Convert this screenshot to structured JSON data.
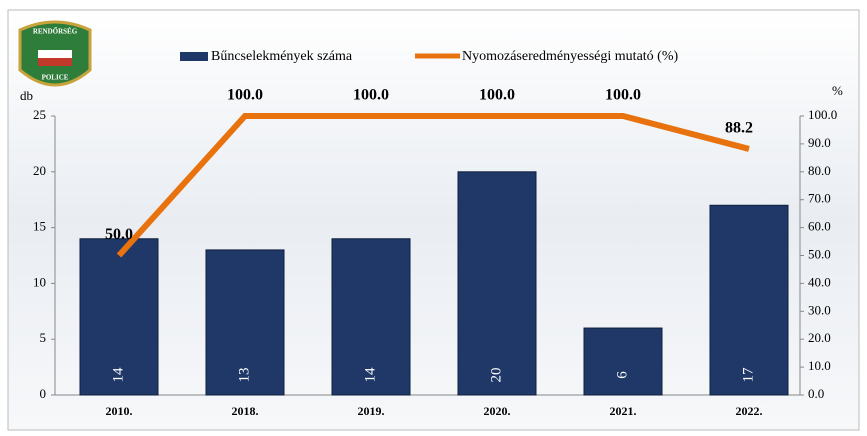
{
  "logo": {
    "top": "RENDŐRSÉG",
    "bottom": "POLICE"
  },
  "chart_data": {
    "type": "bar-line",
    "y_label": "db",
    "y2_label": "%",
    "categories": [
      "2010.",
      "2018.",
      "2019.",
      "2020.",
      "2021.",
      "2022."
    ],
    "series": [
      {
        "name": "Bűncselekmények száma",
        "type": "bar",
        "color": "#1f3868",
        "values": [
          14,
          13,
          14,
          20,
          6,
          17
        ]
      },
      {
        "name": "Nyomozáseredményességi mutató (%)",
        "type": "line",
        "axis": "y2",
        "color": "#e8730e",
        "values": [
          50,
          100,
          100,
          100,
          100,
          88.2
        ],
        "value_labels": [
          "50.0",
          "100.0",
          "100.0",
          "100.0",
          "100.0",
          "88.2"
        ]
      }
    ],
    "ylim": [
      0,
      25
    ],
    "yticks": [
      0,
      5,
      10,
      15,
      20,
      25
    ],
    "y2lim": [
      0,
      100
    ],
    "y2ticks": [
      {
        "value": 0,
        "label": "0.0"
      },
      {
        "value": 10,
        "label": "10.0"
      },
      {
        "value": 20,
        "label": "20.0"
      },
      {
        "value": 30,
        "label": "30.0"
      },
      {
        "value": 40,
        "label": "40.0"
      },
      {
        "value": 50,
        "label": "50.0"
      },
      {
        "value": 60,
        "label": "60.0"
      },
      {
        "value": 70,
        "label": "70.0"
      },
      {
        "value": 80,
        "label": "80.0"
      },
      {
        "value": 90,
        "label": "90.0"
      },
      {
        "value": 100,
        "label": "100.0"
      }
    ],
    "legend": "top"
  }
}
